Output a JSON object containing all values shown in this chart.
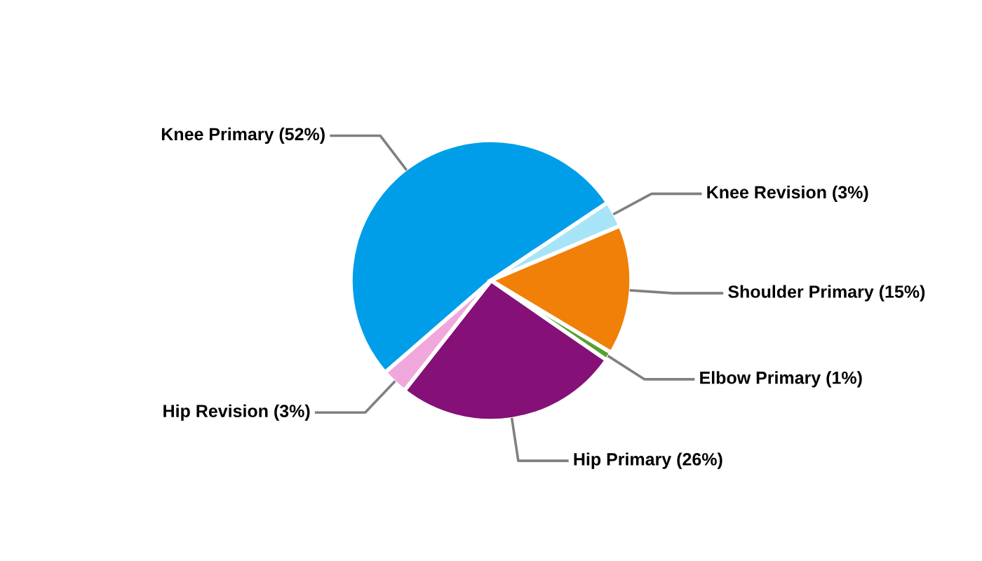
{
  "chart_data": {
    "type": "pie",
    "categories": [
      "Knee Primary",
      "Knee Revision",
      "Shoulder Primary",
      "Elbow Primary",
      "Hip Primary",
      "Hip Revision"
    ],
    "values": [
      52,
      3,
      15,
      1,
      26,
      3
    ],
    "value_labels": [
      "(52%)",
      "(3%)",
      "(15%)",
      "(1%)",
      "(26%)",
      "(3%)"
    ],
    "colors": [
      "#009ee8",
      "#a8e4f8",
      "#f08008",
      "#58a030",
      "#841078",
      "#f0a8dc"
    ],
    "legend": false
  }
}
